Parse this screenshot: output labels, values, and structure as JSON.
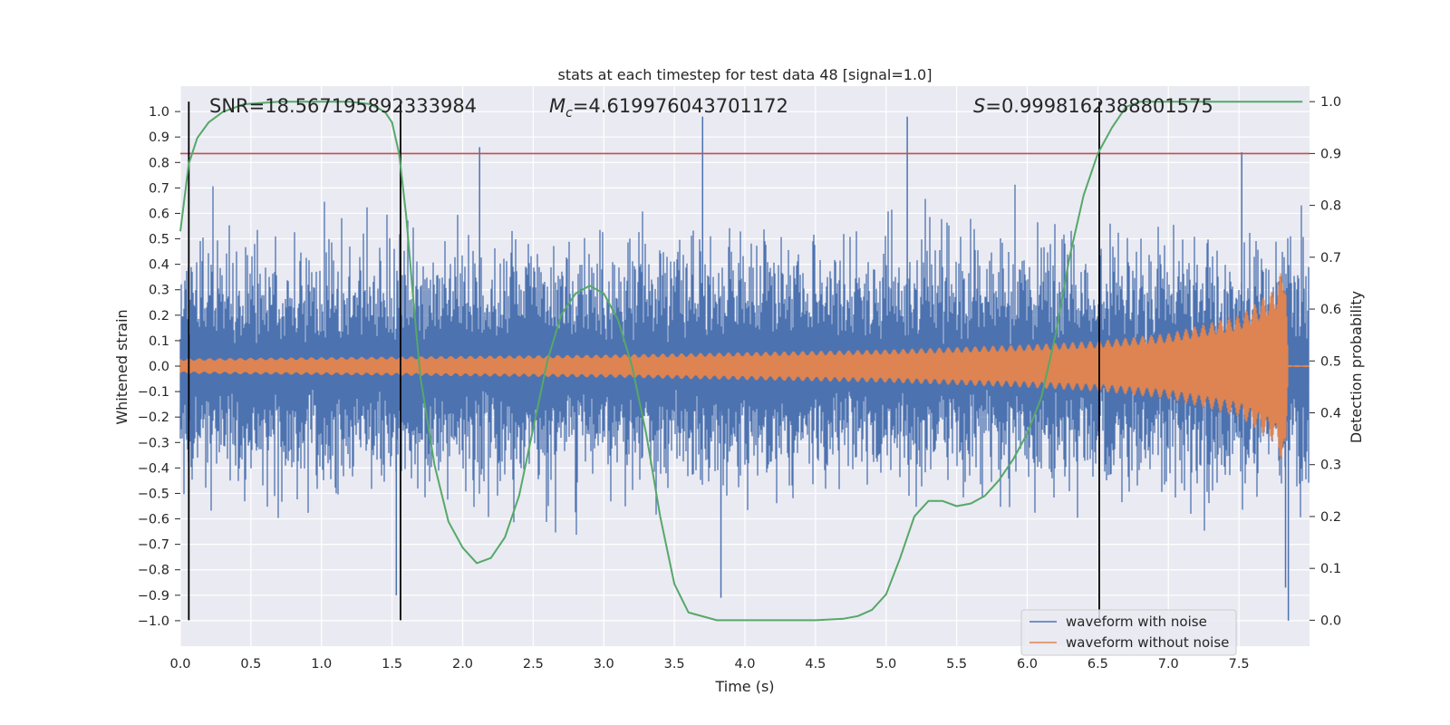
{
  "chart_data": {
    "type": "line",
    "title": "stats at each timestep for test data 48 [signal=1.0]",
    "xlabel": "Time (s)",
    "ylabel": "Whitened strain",
    "y2label": "Detection probability",
    "xlim": [
      0,
      8
    ],
    "ylim": [
      -1.1,
      1.1
    ],
    "y2lim": [
      -0.05,
      1.03
    ],
    "xticks": [
      "0.0",
      "0.5",
      "1.0",
      "1.5",
      "2.0",
      "2.5",
      "3.0",
      "3.5",
      "4.0",
      "4.5",
      "5.0",
      "5.5",
      "6.0",
      "6.5",
      "7.0",
      "7.5"
    ],
    "yticks": [
      "1.0",
      "0.9",
      "0.8",
      "0.7",
      "0.6",
      "0.5",
      "0.4",
      "0.3",
      "0.2",
      "0.1",
      "0.0",
      "−0.1",
      "−0.2",
      "−0.3",
      "−0.4",
      "−0.5",
      "−0.6",
      "−0.7",
      "−0.8",
      "−0.9",
      "−1.0"
    ],
    "y2ticks": [
      "1.0",
      "0.9",
      "0.8",
      "0.7",
      "0.6",
      "0.5",
      "0.4",
      "0.3",
      "0.2",
      "0.1",
      "0.0"
    ],
    "annotations": {
      "snr": "SNR=18.567195892333984",
      "mc_symbol": "M",
      "mc_sub": "c",
      "mc_value": "=4.619976043701172",
      "s_symbol": "S",
      "s_value": "=0.9998162388801575"
    },
    "threshold_probability": 0.9,
    "event_lines_s": [
      0.06,
      1.56,
      6.51
    ],
    "series": [
      {
        "name": "waveform with noise",
        "color": "#4c72b0",
        "description_range": [
          -1.0,
          0.98
        ]
      },
      {
        "name": "waveform without noise",
        "color": "#dd8452",
        "envelope": {
          "t": [
            0.0,
            1.0,
            2.0,
            3.0,
            4.0,
            5.0,
            6.0,
            6.5,
            7.0,
            7.5,
            7.75,
            7.83,
            7.85
          ],
          "amp": [
            0.03,
            0.035,
            0.04,
            0.045,
            0.055,
            0.065,
            0.085,
            0.1,
            0.13,
            0.2,
            0.3,
            0.42,
            0.0
          ]
        }
      },
      {
        "name": "detection probability",
        "color": "#55a868",
        "t": [
          0.0,
          0.06,
          0.12,
          0.2,
          0.3,
          0.45,
          0.7,
          1.0,
          1.2,
          1.35,
          1.45,
          1.5,
          1.55,
          1.6,
          1.65,
          1.7,
          1.8,
          1.9,
          2.0,
          2.1,
          2.2,
          2.3,
          2.4,
          2.5,
          2.6,
          2.7,
          2.8,
          2.9,
          3.0,
          3.1,
          3.2,
          3.3,
          3.4,
          3.5,
          3.6,
          3.8,
          4.0,
          4.5,
          4.7,
          4.8,
          4.9,
          5.0,
          5.1,
          5.2,
          5.3,
          5.4,
          5.5,
          5.6,
          5.7,
          5.8,
          5.9,
          6.0,
          6.1,
          6.2,
          6.3,
          6.4,
          6.5,
          6.6,
          6.7,
          6.8,
          7.0,
          7.5,
          7.95
        ],
        "p": [
          0.75,
          0.88,
          0.93,
          0.96,
          0.98,
          0.995,
          1.0,
          1.0,
          1.0,
          0.995,
          0.98,
          0.96,
          0.9,
          0.78,
          0.62,
          0.47,
          0.3,
          0.19,
          0.14,
          0.11,
          0.12,
          0.16,
          0.24,
          0.37,
          0.5,
          0.59,
          0.63,
          0.645,
          0.63,
          0.58,
          0.49,
          0.36,
          0.2,
          0.07,
          0.015,
          0.0,
          0.0,
          0.0,
          0.003,
          0.008,
          0.02,
          0.05,
          0.12,
          0.2,
          0.23,
          0.23,
          0.22,
          0.225,
          0.24,
          0.27,
          0.31,
          0.36,
          0.43,
          0.55,
          0.7,
          0.82,
          0.9,
          0.95,
          0.99,
          1.0,
          1.0,
          1.0,
          1.0
        ]
      }
    ],
    "grid": true,
    "legend_placement": "lower-right",
    "colors": {
      "background": "#eaeaf2",
      "grid": "#ffffff",
      "threshold": "#c44e52",
      "event": "#000000"
    }
  }
}
